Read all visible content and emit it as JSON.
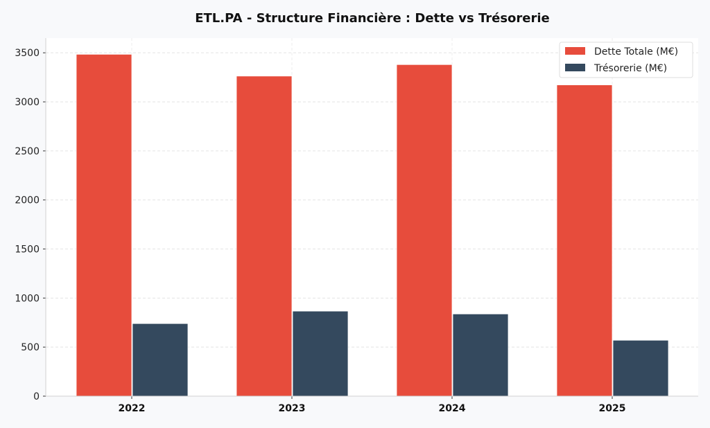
{
  "chart_data": {
    "type": "bar",
    "title": "ETL.PA - Structure Financière : Dette vs Trésorerie",
    "xlabel": "",
    "ylabel": "",
    "categories": [
      "2022",
      "2023",
      "2024",
      "2025"
    ],
    "series": [
      {
        "name": "Dette Totale (M€)",
        "values": [
          3485,
          3263,
          3380,
          3173
        ],
        "color": "#e74c3c"
      },
      {
        "name": "Trésorerie (M€)",
        "values": [
          740,
          867,
          838,
          570
        ],
        "color": "#34495e"
      }
    ],
    "ylim": [
      0,
      3650
    ],
    "yticks": [
      0,
      500,
      1000,
      1500,
      2000,
      2500,
      3000,
      3500
    ],
    "grid": true,
    "legend": "top-right"
  }
}
